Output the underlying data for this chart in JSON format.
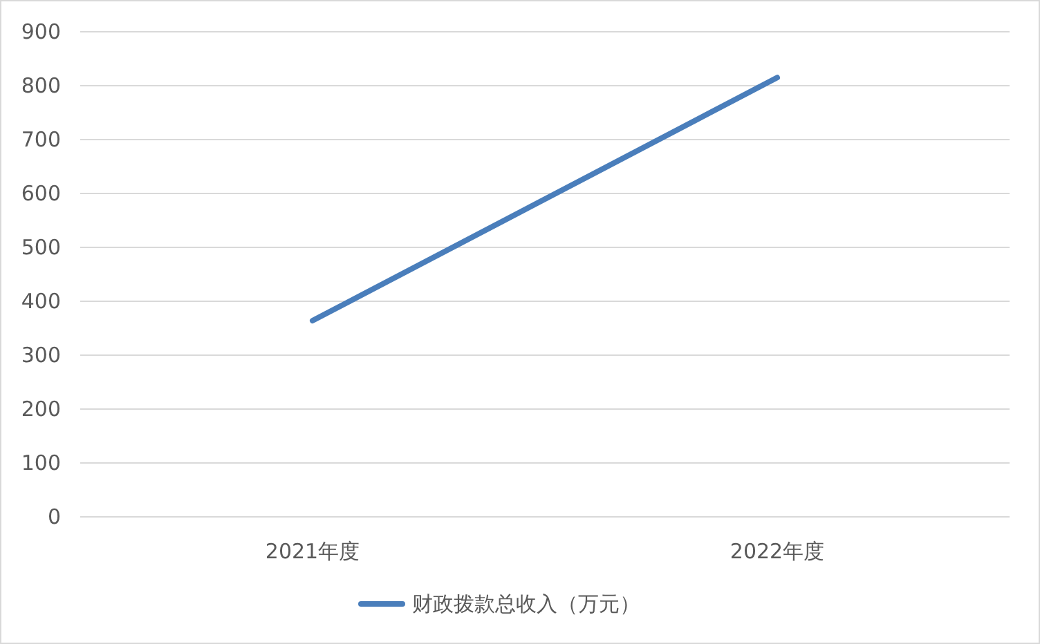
{
  "chart_data": {
    "type": "line",
    "categories": [
      "2021年度",
      "2022年度"
    ],
    "series": [
      {
        "name": "财政拨款总收入（万元）",
        "color": "#4a7ebb",
        "values": [
          364,
          815
        ]
      }
    ],
    "ylim": [
      0,
      900
    ],
    "yticks": [
      0,
      100,
      200,
      300,
      400,
      500,
      600,
      700,
      800,
      900
    ],
    "grid": "y",
    "legend": "bottom"
  }
}
